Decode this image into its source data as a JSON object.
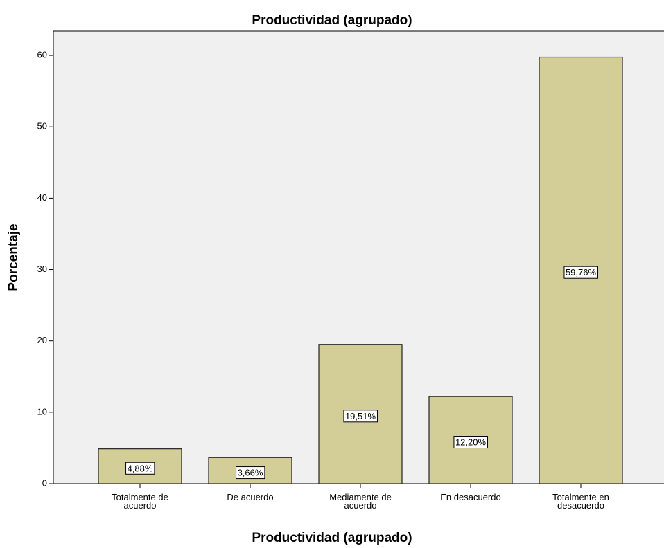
{
  "chart_data": {
    "type": "bar",
    "title": "Productividad (agrupado)",
    "x_label": "Productividad (agrupado)",
    "y_label": "Porcentaje",
    "categories": [
      "Totalmente de acuerdo",
      "De acuerdo",
      "Mediamente de acuerdo",
      "En desacuerdo",
      "Totalmente en desacuerdo"
    ],
    "values": [
      4.88,
      3.66,
      19.51,
      12.2,
      59.76
    ],
    "value_labels": [
      "4,88%",
      "3,66%",
      "19,51%",
      "12,20%",
      "59,76%"
    ],
    "color": "#d3ce97",
    "ylim": [
      0,
      63.4
    ],
    "yticks": [
      0,
      10,
      20,
      30,
      40,
      50,
      60
    ],
    "grid": false
  }
}
